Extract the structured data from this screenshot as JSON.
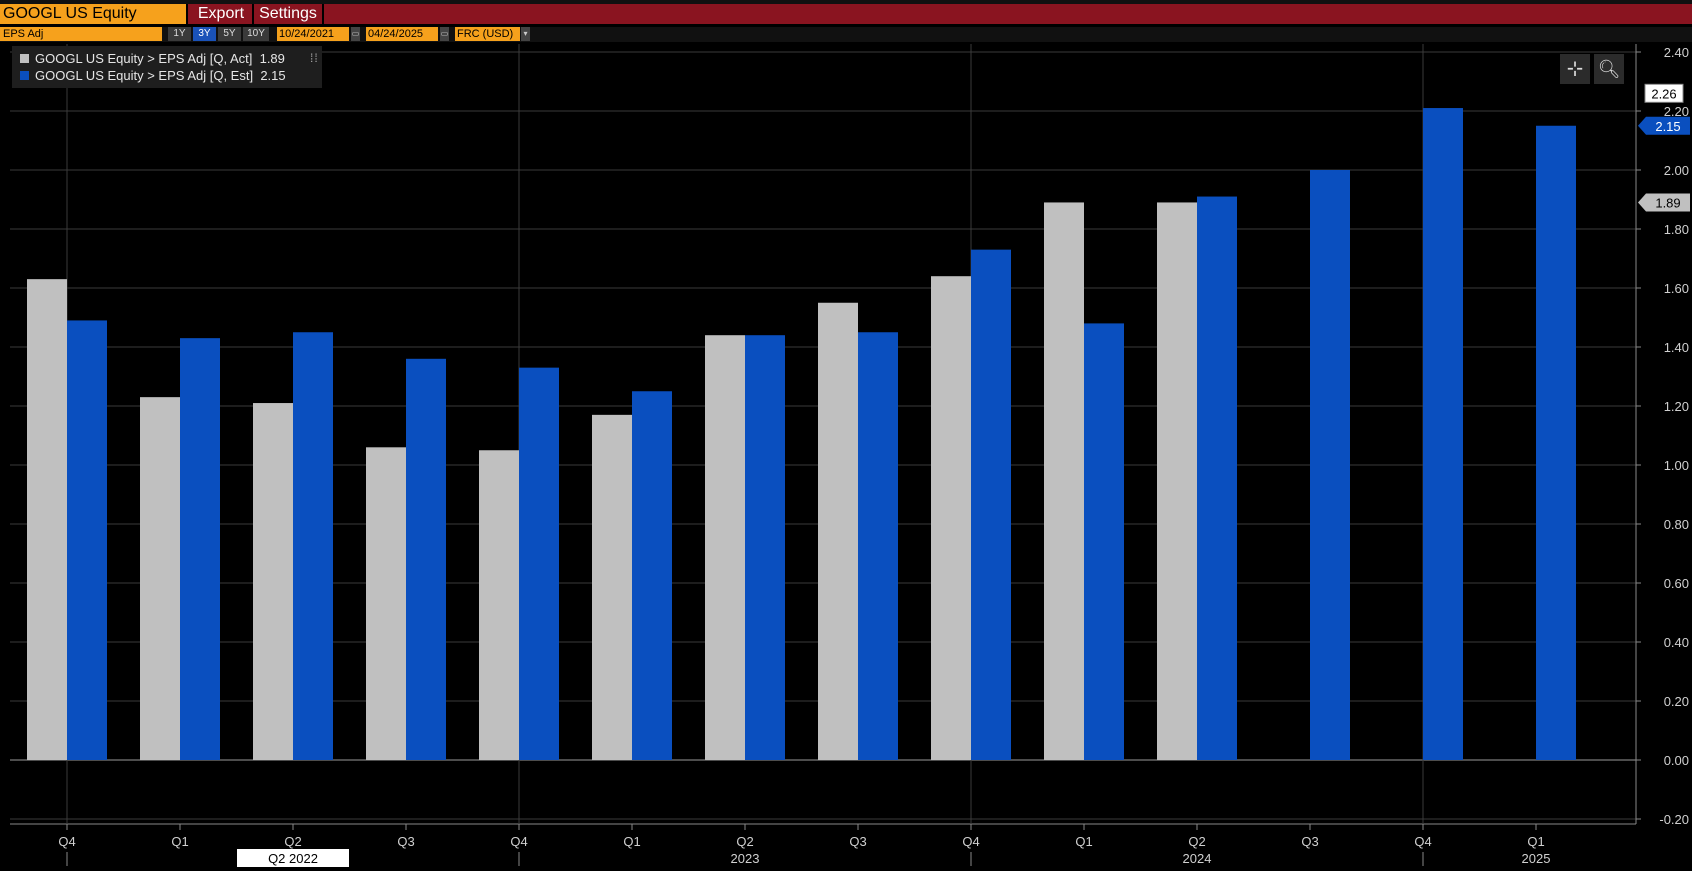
{
  "header": {
    "ticker": "GOOGL US Equity",
    "export_label": "Export",
    "settings_label": "Settings"
  },
  "toolbar": {
    "field": "EPS Adj",
    "periods": [
      "1Y",
      "3Y",
      "5Y",
      "10Y"
    ],
    "active_period": "3Y",
    "start_date": "10/24/2021",
    "end_date": "04/24/2025",
    "currency": "FRC (USD)"
  },
  "legend": {
    "items": [
      {
        "label": "GOOGL US Equity > EPS Adj [Q, Act]",
        "value": "1.89",
        "color": "#c0c0c0"
      },
      {
        "label": "GOOGL US Equity > EPS Adj [Q, Est]",
        "value": "2.15",
        "color": "#0a4fbf"
      }
    ]
  },
  "controls": {
    "crosshair_icon": "crosshair-icon",
    "zoom_icon": "magnifier-zoom-icon"
  },
  "chart_data": {
    "type": "bar",
    "categories": [
      "Q4",
      "Q1",
      "Q2",
      "Q3",
      "Q4",
      "Q1",
      "Q2",
      "Q3",
      "Q4",
      "Q1",
      "Q2",
      "Q3",
      "Q4",
      "Q1"
    ],
    "year_labels": [
      {
        "category_index": 6,
        "label": "2023"
      },
      {
        "category_index": 10,
        "label": "2024"
      },
      {
        "category_index": 13,
        "label": "2025"
      }
    ],
    "cursor_label": {
      "category_index": 2,
      "label": "Q2 2022"
    },
    "series": [
      {
        "name": "GOOGL US Equity > EPS Adj [Q, Act]",
        "color": "#c0c0c0",
        "values": [
          1.63,
          1.23,
          1.21,
          1.06,
          1.05,
          1.17,
          1.44,
          1.55,
          1.64,
          1.89,
          1.89,
          null,
          null,
          null
        ]
      },
      {
        "name": "GOOGL US Equity > EPS Adj [Q, Est]",
        "color": "#0a4fbf",
        "values": [
          1.49,
          1.43,
          1.45,
          1.36,
          1.33,
          1.25,
          1.44,
          1.45,
          1.73,
          1.48,
          1.91,
          2.0,
          2.21,
          2.15
        ]
      }
    ],
    "y_ticks": [
      "2.40",
      "2.20",
      "2.00",
      "1.80",
      "1.60",
      "1.40",
      "1.20",
      "1.00",
      "0.80",
      "0.60",
      "0.40",
      "0.20",
      "0.00",
      "-0.20"
    ],
    "ylim": [
      -0.2,
      2.4
    ],
    "price_tags": [
      {
        "value": 2.26,
        "label": "2.26",
        "style": "white"
      },
      {
        "value": 2.15,
        "label": "2.15",
        "style": "blue"
      },
      {
        "value": 1.89,
        "label": "1.89",
        "style": "gray"
      }
    ],
    "grid": true,
    "legend_position": "top-left"
  }
}
